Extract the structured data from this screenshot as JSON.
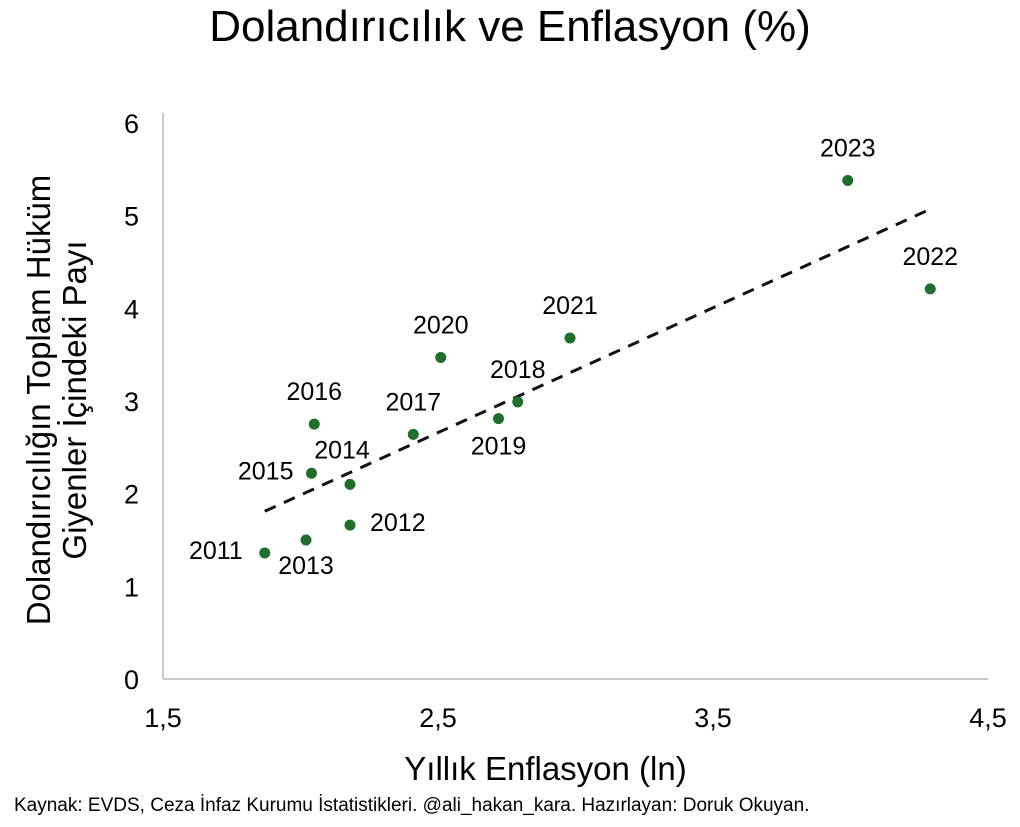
{
  "chart_data": {
    "type": "scatter",
    "title": "Dolandırıcılık ve Enflasyon (%)",
    "xlabel": "Yıllık Enflasyon (ln)",
    "ylabel": [
      "Dolandırıcılığın Toplam Hüküm",
      "Giyenler İçindeki Payı"
    ],
    "xlim": [
      1.5,
      4.5
    ],
    "ylim": [
      0,
      6
    ],
    "xticks": [
      "1,5",
      "2,5",
      "3,5",
      "4,5"
    ],
    "xtick_values": [
      1.5,
      2.5,
      3.5,
      4.5
    ],
    "yticks": [
      "0",
      "1",
      "2",
      "3",
      "4",
      "5",
      "6"
    ],
    "grid": false,
    "point_color": "#1f6e2c",
    "points": [
      {
        "label": "2011",
        "x": 1.87,
        "y": 1.36
      },
      {
        "label": "2012",
        "x": 2.18,
        "y": 1.66
      },
      {
        "label": "2013",
        "x": 2.02,
        "y": 1.5
      },
      {
        "label": "2014",
        "x": 2.18,
        "y": 2.1
      },
      {
        "label": "2015",
        "x": 2.04,
        "y": 2.22
      },
      {
        "label": "2016",
        "x": 2.05,
        "y": 2.75
      },
      {
        "label": "2017",
        "x": 2.41,
        "y": 2.64
      },
      {
        "label": "2018",
        "x": 2.79,
        "y": 2.99
      },
      {
        "label": "2019",
        "x": 2.72,
        "y": 2.81
      },
      {
        "label": "2020",
        "x": 2.51,
        "y": 3.47
      },
      {
        "label": "2021",
        "x": 2.98,
        "y": 3.68
      },
      {
        "label": "2022",
        "x": 4.29,
        "y": 4.21
      },
      {
        "label": "2023",
        "x": 3.99,
        "y": 5.38
      }
    ],
    "trendline": {
      "style": "dashed",
      "x": [
        1.87,
        4.29
      ],
      "y": [
        1.81,
        5.07
      ]
    }
  },
  "source": "Kaynak: EVDS, Ceza İnfaz Kurumu İstatistikleri. @ali_hakan_kara. Hazırlayan: Doruk Okuyan."
}
